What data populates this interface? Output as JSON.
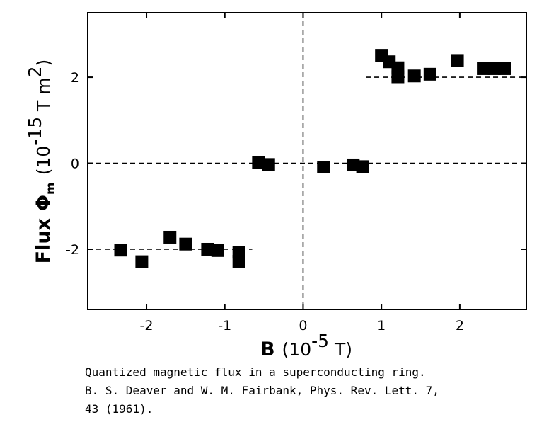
{
  "chart_data": {
    "type": "scatter",
    "xlabel": {
      "name": "B",
      "unit_prefix": "(10",
      "unit_exp": "-5",
      "unit_suffix": " T)"
    },
    "ylabel": {
      "name": "Flux",
      "symbol": "Φ",
      "symbol_sub": "m",
      "unit_prefix": "(10",
      "unit_exp": "-15",
      "unit_mid": " T m",
      "unit_exp2": "2",
      "unit_suffix": ")"
    },
    "xlim": [
      -2.75,
      2.85
    ],
    "ylim": [
      -3.4,
      3.5
    ],
    "xticks": [
      -2,
      -1,
      0,
      1,
      2
    ],
    "yticks": [
      -2,
      0,
      2
    ],
    "xtick_labels": [
      "-2",
      "-1",
      "0",
      "1",
      "2"
    ],
    "ytick_labels": [
      "-2",
      "0",
      "2"
    ],
    "grid": false,
    "reference_lines": [
      {
        "y": -2,
        "x_range": [
          -2.75,
          -0.65
        ]
      },
      {
        "y": 0,
        "x_range": [
          -2.75,
          2.85
        ]
      },
      {
        "y": 2,
        "x_range": [
          0.8,
          2.85
        ]
      }
    ],
    "zero_line_vertical": true,
    "series": [
      {
        "marker": "square",
        "color": "#000000",
        "x": [
          -2.33,
          -2.06,
          -1.7,
          -1.5,
          -1.22,
          -1.09,
          -0.82,
          -0.82,
          -0.57,
          -0.44,
          0.26,
          0.64,
          0.76,
          1.0,
          1.1,
          1.21,
          1.21,
          1.42,
          1.62,
          1.97,
          2.3,
          2.44,
          2.57
        ],
        "y": [
          -2.02,
          -2.29,
          -1.72,
          -1.88,
          -2.0,
          -2.03,
          -2.07,
          -2.28,
          0.01,
          -0.03,
          -0.09,
          -0.04,
          -0.08,
          2.51,
          2.36,
          2.22,
          2.01,
          2.03,
          2.07,
          2.39,
          2.2,
          2.2,
          2.2
        ]
      }
    ]
  },
  "caption": {
    "line1": "Quantized magnetic flux in a superconducting ring.",
    "line2": "B. S. Deaver and W. M. Fairbank, Phys. Rev. Lett. 7,",
    "line3": "43 (1961)."
  }
}
